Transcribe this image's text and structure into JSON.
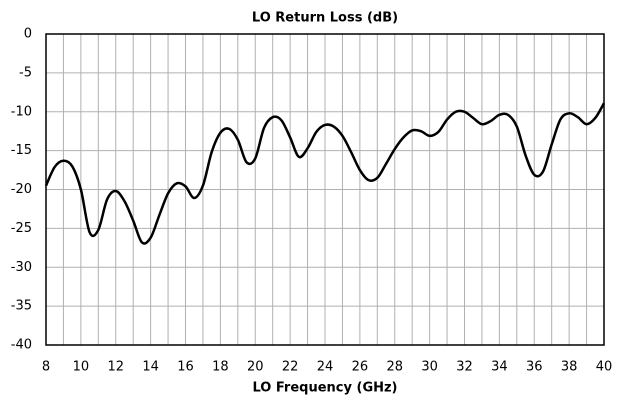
{
  "chart_data": {
    "type": "line",
    "title": "LO Return Loss (dB)",
    "x_label": "LO Frequency (GHz)",
    "x": [
      8,
      8.5,
      9,
      9.5,
      10,
      10.5,
      11,
      11.5,
      12,
      12.5,
      13,
      13.5,
      14,
      14.5,
      15,
      15.5,
      16,
      16.5,
      17,
      17.5,
      18,
      18.5,
      19,
      19.5,
      20,
      20.5,
      21,
      21.5,
      22,
      22.5,
      23,
      23.5,
      24,
      24.5,
      25,
      25.5,
      26,
      26.5,
      27,
      27.5,
      28,
      28.5,
      29,
      29.5,
      30,
      30.5,
      31,
      31.5,
      32,
      32.5,
      33,
      33.5,
      34,
      34.5,
      35,
      35.5,
      36,
      36.5,
      37,
      37.5,
      38,
      38.5,
      39,
      39.5,
      40
    ],
    "series": [
      {
        "name": "LO Return Loss",
        "color": "#000000",
        "values": [
          -19.5,
          -17.1,
          -16.3,
          -17,
          -20,
          -25.5,
          -25.2,
          -21.3,
          -20.2,
          -21.5,
          -24,
          -26.8,
          -26.2,
          -23.3,
          -20.5,
          -19.2,
          -19.6,
          -21.1,
          -19.5,
          -15.2,
          -12.7,
          -12.2,
          -13.6,
          -16.5,
          -16,
          -12.1,
          -10.7,
          -11.1,
          -13.3,
          -15.8,
          -14.7,
          -12.6,
          -11.7,
          -11.9,
          -13.1,
          -15.2,
          -17.5,
          -18.8,
          -18.5,
          -16.7,
          -14.8,
          -13.3,
          -12.4,
          -12.5,
          -13.1,
          -12.6,
          -11,
          -10,
          -10,
          -10.8,
          -11.6,
          -11.2,
          -10.4,
          -10.4,
          -11.9,
          -15.6,
          -18.1,
          -17.7,
          -14.2,
          -11,
          -10.2,
          -10.7,
          -11.6,
          -10.8,
          -8.9
        ]
      }
    ],
    "xlim": [
      8,
      40
    ],
    "xticks": [
      8,
      10,
      12,
      14,
      16,
      18,
      20,
      22,
      24,
      26,
      28,
      30,
      32,
      34,
      36,
      38,
      40
    ],
    "ylim": [
      -40,
      0
    ],
    "yticks": [
      0,
      -5,
      -10,
      -15,
      -20,
      -25,
      -30,
      -35,
      -40
    ],
    "grid": true
  }
}
